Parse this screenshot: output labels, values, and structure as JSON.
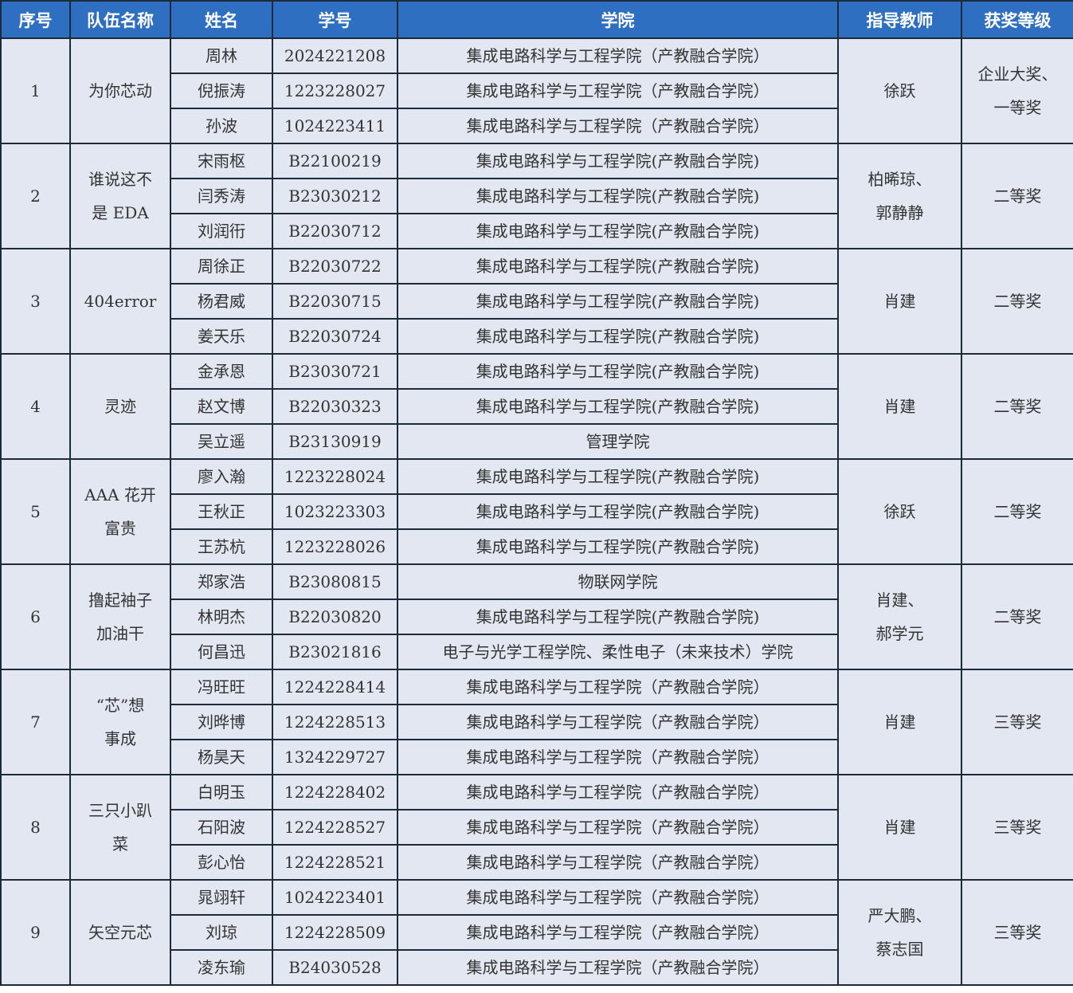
{
  "headers": [
    "序号",
    "队伍名称",
    "姓名",
    "学号",
    "学院",
    "指导教师",
    "获奖等级"
  ],
  "teams": [
    {
      "no": "1",
      "name": "为你芯动",
      "teacher": "徐跃",
      "award": "企业大奖、\n一等奖",
      "members": [
        {
          "name": "周林",
          "id": "2024221208",
          "college": "集成电路科学与工程学院（产教融合学院）"
        },
        {
          "name": "倪振涛",
          "id": "1223228027",
          "college": "集成电路科学与工程学院（产教融合学院）"
        },
        {
          "name": "孙波",
          "id": "1024223411",
          "college": "集成电路科学与工程学院（产教融合学院）"
        }
      ]
    },
    {
      "no": "2",
      "name": "谁说这不\n是 EDA",
      "teacher": "柏晞琼、\n郭静静",
      "award": "二等奖",
      "members": [
        {
          "name": "宋雨枢",
          "id": "B22100219",
          "college": "集成电路科学与工程学院(产教融合学院)"
        },
        {
          "name": "闫秀涛",
          "id": "B23030212",
          "college": "集成电路科学与工程学院(产教融合学院)"
        },
        {
          "name": "刘润衎",
          "id": "B22030712",
          "college": "集成电路科学与工程学院(产教融合学院)"
        }
      ]
    },
    {
      "no": "3",
      "name": "404error",
      "teacher": "肖建",
      "award": "二等奖",
      "members": [
        {
          "name": "周徐正",
          "id": "B22030722",
          "college": "集成电路科学与工程学院(产教融合学院)"
        },
        {
          "name": "杨君威",
          "id": "B22030715",
          "college": "集成电路科学与工程学院(产教融合学院)"
        },
        {
          "name": "姜天乐",
          "id": "B22030724",
          "college": "集成电路科学与工程学院(产教融合学院)"
        }
      ]
    },
    {
      "no": "4",
      "name": "灵迹",
      "teacher": "肖建",
      "award": "二等奖",
      "members": [
        {
          "name": "金承恩",
          "id": "B23030721",
          "college": "集成电路科学与工程学院(产教融合学院)"
        },
        {
          "name": "赵文博",
          "id": "B22030323",
          "college": "集成电路科学与工程学院(产教融合学院)"
        },
        {
          "name": "吴立遥",
          "id": "B23130919",
          "college": "管理学院"
        }
      ]
    },
    {
      "no": "5",
      "name": "AAA 花开\n富贵",
      "teacher": "徐跃",
      "award": "二等奖",
      "members": [
        {
          "name": "廖入瀚",
          "id": "1223228024",
          "college": "集成电路科学与工程学院(产教融合学院)"
        },
        {
          "name": "王秋正",
          "id": "1023223303",
          "college": "集成电路科学与工程学院(产教融合学院)"
        },
        {
          "name": "王苏杭",
          "id": "1223228026",
          "college": "集成电路科学与工程学院(产教融合学院)"
        }
      ]
    },
    {
      "no": "6",
      "name": "撸起袖子\n加油干",
      "teacher": "肖建、\n郝学元",
      "award": "二等奖",
      "members": [
        {
          "name": "郑家浩",
          "id": "B23080815",
          "college": "物联网学院"
        },
        {
          "name": "林明杰",
          "id": "B22030820",
          "college": "集成电路科学与工程学院(产教融合学院)"
        },
        {
          "name": "何昌迅",
          "id": "B23021816",
          "college": "电子与光学工程学院、柔性电子（未来技术）学院"
        }
      ]
    },
    {
      "no": "7",
      "name": "“芯”想\n事成",
      "teacher": "肖建",
      "award": "三等奖",
      "members": [
        {
          "name": "冯旺旺",
          "id": "1224228414",
          "college": "集成电路科学与工程学院（产教融合学院）"
        },
        {
          "name": "刘晔博",
          "id": "1224228513",
          "college": "集成电路科学与工程学院（产教融合学院）"
        },
        {
          "name": "杨昊天",
          "id": "1324229727",
          "college": "集成电路科学与工程学院（产教融合学院）"
        }
      ]
    },
    {
      "no": "8",
      "name": "三只小趴\n菜",
      "teacher": "肖建",
      "award": "三等奖",
      "members": [
        {
          "name": "白明玉",
          "id": "1224228402",
          "college": "集成电路科学与工程学院（产教融合学院）"
        },
        {
          "name": "石阳波",
          "id": "1224228527",
          "college": "集成电路科学与工程学院（产教融合学院）"
        },
        {
          "name": "彭心怡",
          "id": "1224228521",
          "college": "集成电路科学与工程学院（产教融合学院）"
        }
      ]
    },
    {
      "no": "9",
      "name": "矢空元芯",
      "teacher": "严大鹏、\n蔡志国",
      "award": "三等奖",
      "members": [
        {
          "name": "晁翊轩",
          "id": "1024223401",
          "college": "集成电路科学与工程学院（产教融合学院）"
        },
        {
          "name": "刘琼",
          "id": "1224228509",
          "college": "集成电路科学与工程学院（产教融合学院）"
        },
        {
          "name": "凌东瑜",
          "id": "B24030528",
          "college": "集成电路科学与工程学院（产教融合学院）"
        }
      ]
    }
  ]
}
